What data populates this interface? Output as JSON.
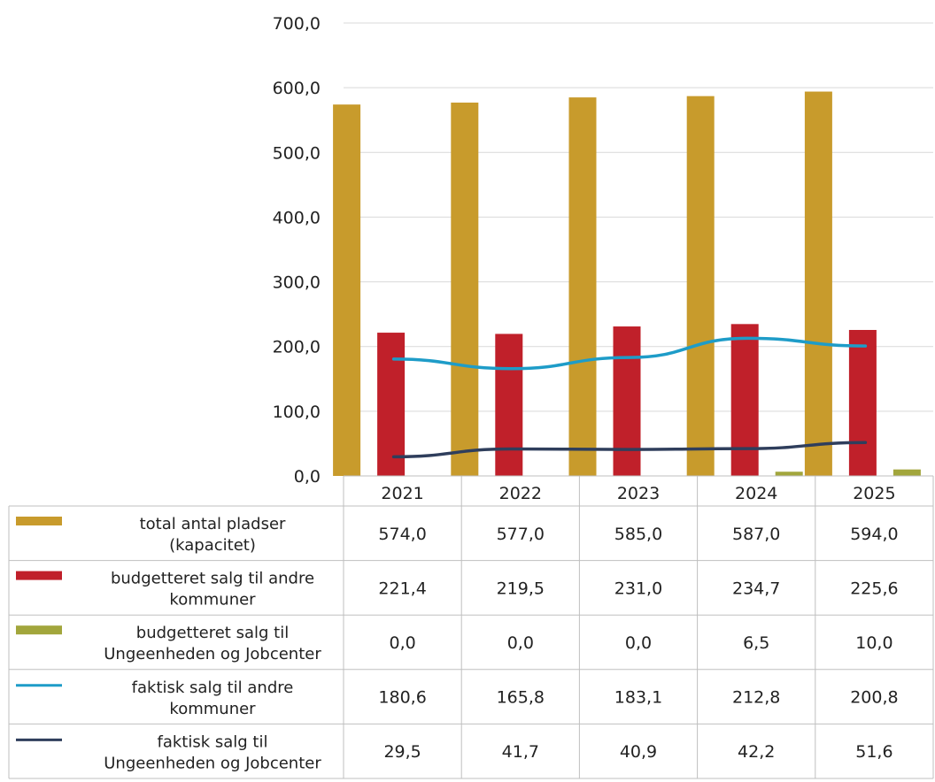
{
  "chart_data": {
    "type": "bar",
    "title": "",
    "xlabel": "",
    "ylabel": "",
    "ylim": [
      0,
      700
    ],
    "yticks": [
      "0,0",
      "100,0",
      "200,0",
      "300,0",
      "400,0",
      "500,0",
      "600,0",
      "700,0"
    ],
    "categories": [
      "2021",
      "2022",
      "2023",
      "2024",
      "2025"
    ],
    "grid": true,
    "legend": "data-table-below",
    "series": [
      {
        "name": "total antal pladser (kapacitet)",
        "label_lines": [
          "total antal pladser",
          "(kapacitet)"
        ],
        "kind": "bar",
        "color": "#C89B2C",
        "values": [
          574.0,
          577.0,
          585.0,
          587.0,
          594.0
        ],
        "table_values": [
          "574,0",
          "577,0",
          "585,0",
          "587,0",
          "594,0"
        ]
      },
      {
        "name": "budgetteret salg til andre kommuner",
        "label_lines": [
          "budgetteret salg til andre",
          "kommuner"
        ],
        "kind": "bar",
        "color": "#C0202A",
        "values": [
          221.4,
          219.5,
          231.0,
          234.7,
          225.6
        ],
        "table_values": [
          "221,4",
          "219,5",
          "231,0",
          "234,7",
          "225,6"
        ]
      },
      {
        "name": "budgetteret salg til Ungeenheden og Jobcenter",
        "label_lines": [
          "budgetteret salg til",
          "Ungeenheden og Jobcenter"
        ],
        "kind": "bar",
        "color": "#A2A63C",
        "values": [
          0.0,
          0.0,
          0.0,
          6.5,
          10.0
        ],
        "table_values": [
          "0,0",
          "0,0",
          "0,0",
          "6,5",
          "10,0"
        ]
      },
      {
        "name": "faktisk salg til andre kommuner",
        "label_lines": [
          "faktisk salg til andre",
          "kommuner"
        ],
        "kind": "line",
        "color": "#1E9CC8",
        "values": [
          180.6,
          165.8,
          183.1,
          212.8,
          200.8
        ],
        "table_values": [
          "180,6",
          "165,8",
          "183,1",
          "212,8",
          "200,8"
        ]
      },
      {
        "name": "faktisk salg til Ungeenheden og Jobcenter",
        "label_lines": [
          "faktisk salg til",
          "Ungeenheden og Jobcenter"
        ],
        "kind": "line",
        "color": "#2F3E5C",
        "values": [
          29.5,
          41.7,
          40.9,
          42.2,
          51.6
        ],
        "table_values": [
          "29,5",
          "41,7",
          "40,9",
          "42,2",
          "51,6"
        ]
      }
    ]
  }
}
